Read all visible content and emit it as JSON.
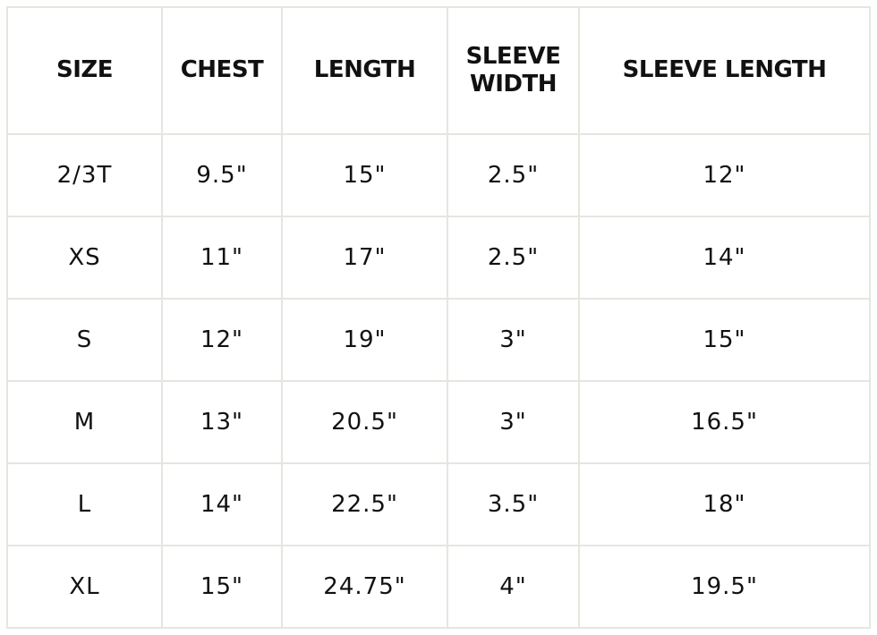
{
  "table": {
    "headers": [
      "SIZE",
      "CHEST",
      "LENGTH",
      "SLEEVE WIDTH",
      "SLEEVE LENGTH"
    ],
    "rows": [
      [
        "2/3T",
        "9.5\"",
        "15\"",
        "2.5\"",
        "12\""
      ],
      [
        "XS",
        "11\"",
        "17\"",
        "2.5\"",
        "14\""
      ],
      [
        "S",
        "12\"",
        "19\"",
        "3\"",
        "15\""
      ],
      [
        "M",
        "13\"",
        "20.5\"",
        "3\"",
        "16.5\""
      ],
      [
        "L",
        "14\"",
        "22.5\"",
        "3.5\"",
        "18\""
      ],
      [
        "XL",
        "15\"",
        "24.75\"",
        "4\"",
        "19.5\""
      ]
    ]
  },
  "colors": {
    "border": "#e6e6df",
    "text": "#111111"
  }
}
